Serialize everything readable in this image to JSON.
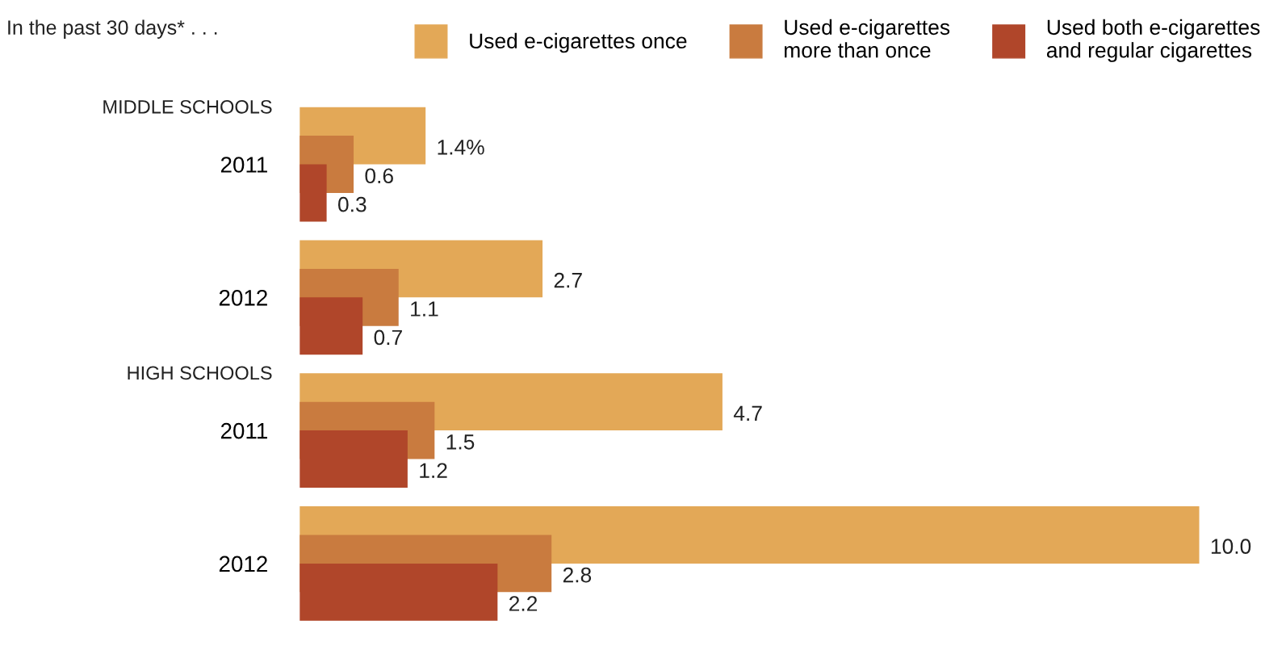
{
  "chart_data": {
    "type": "bar",
    "orientation": "horizontal",
    "legend": "top",
    "legend_title": "In the past 30 days* . . .",
    "tick_labels": "y",
    "categories": [
      "2011",
      "2012",
      "2011",
      "2012"
    ],
    "annotations": [
      "MIDDLE SCHOOLS",
      "HIGH SCHOOLS"
    ],
    "series": [
      {
        "name": "Used e-cigarettes once",
        "color": "#e3a857",
        "values": [
          1.4,
          2.7,
          4.7,
          10.0
        ],
        "value_labels": [
          "1.4%",
          "2.7",
          "4.7",
          "10.0"
        ]
      },
      {
        "name": "Used e-cigarettes\nmore than once",
        "color": "#c97b3f",
        "values": [
          0.6,
          1.1,
          1.5,
          2.8
        ],
        "value_labels": [
          "0.6",
          "1.1",
          "1.5",
          "2.8"
        ]
      },
      {
        "name": "Used both e-cigarettes\nand regular cigarettes",
        "color": "#b0462a",
        "values": [
          0.3,
          0.7,
          1.2,
          2.2
        ],
        "value_labels": [
          "0.3",
          "0.7",
          "1.2",
          "2.2"
        ]
      }
    ]
  }
}
